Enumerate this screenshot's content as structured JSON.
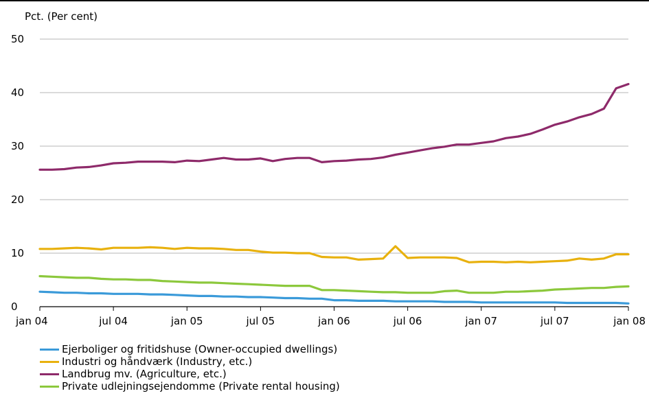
{
  "chart_data": {
    "type": "line",
    "title": "",
    "ylabel": "Pct. (Per cent)",
    "xlabel": "",
    "ylim": [
      0,
      50
    ],
    "yticks": [
      0,
      10,
      20,
      30,
      40,
      50
    ],
    "xtick_labels": [
      "jan 04",
      "jul 04",
      "jan 05",
      "jul 05",
      "jan 06",
      "jul 06",
      "jan 07",
      "jul 07",
      "jan 08"
    ],
    "x": [
      "2004-01",
      "2004-02",
      "2004-03",
      "2004-04",
      "2004-05",
      "2004-06",
      "2004-07",
      "2004-08",
      "2004-09",
      "2004-10",
      "2004-11",
      "2004-12",
      "2005-01",
      "2005-02",
      "2005-03",
      "2005-04",
      "2005-05",
      "2005-06",
      "2005-07",
      "2005-08",
      "2005-09",
      "2005-10",
      "2005-11",
      "2005-12",
      "2006-01",
      "2006-02",
      "2006-03",
      "2006-04",
      "2006-05",
      "2006-06",
      "2006-07",
      "2006-08",
      "2006-09",
      "2006-10",
      "2006-11",
      "2006-12",
      "2007-01",
      "2007-02",
      "2007-03",
      "2007-04",
      "2007-05",
      "2007-06",
      "2007-07",
      "2007-08",
      "2007-09",
      "2007-10",
      "2007-11",
      "2007-12",
      "2008-01"
    ],
    "grid": "horizontal",
    "legend_position": "bottom",
    "series": [
      {
        "name": "Ejerboliger og fritidshuse (Owner-occupied dwellings)",
        "color": "#3a9ad9",
        "values": [
          2.8,
          2.7,
          2.6,
          2.6,
          2.5,
          2.5,
          2.4,
          2.4,
          2.4,
          2.3,
          2.3,
          2.2,
          2.1,
          2.0,
          2.0,
          1.9,
          1.9,
          1.8,
          1.8,
          1.7,
          1.6,
          1.6,
          1.5,
          1.5,
          1.2,
          1.2,
          1.1,
          1.1,
          1.1,
          1.0,
          1.0,
          1.0,
          1.0,
          0.9,
          0.9,
          0.9,
          0.8,
          0.8,
          0.8,
          0.8,
          0.8,
          0.8,
          0.8,
          0.7,
          0.7,
          0.7,
          0.7,
          0.7,
          0.6
        ]
      },
      {
        "name": "Industri og håndværk (Industry, etc.)",
        "color": "#e8b10e",
        "values": [
          10.8,
          10.8,
          10.9,
          11.0,
          10.9,
          10.7,
          11.0,
          11.0,
          11.0,
          11.1,
          11.0,
          10.8,
          11.0,
          10.9,
          10.9,
          10.8,
          10.6,
          10.6,
          10.3,
          10.1,
          10.1,
          10.0,
          10.0,
          9.3,
          9.2,
          9.2,
          8.8,
          8.9,
          9.0,
          11.3,
          9.1,
          9.2,
          9.2,
          9.2,
          9.1,
          8.3,
          8.4,
          8.4,
          8.3,
          8.4,
          8.3,
          8.4,
          8.5,
          8.6,
          9.0,
          8.8,
          9.0,
          9.8,
          9.8
        ]
      },
      {
        "name": "Landbrug mv. (Agriculture, etc.)",
        "color": "#8e2a6a",
        "values": [
          25.6,
          25.6,
          25.7,
          26.0,
          26.1,
          26.4,
          26.8,
          26.9,
          27.1,
          27.1,
          27.1,
          27.0,
          27.3,
          27.2,
          27.5,
          27.8,
          27.5,
          27.5,
          27.7,
          27.2,
          27.6,
          27.8,
          27.8,
          27.0,
          27.2,
          27.3,
          27.5,
          27.6,
          27.9,
          28.4,
          28.8,
          29.2,
          29.6,
          29.9,
          30.3,
          30.3,
          30.6,
          30.9,
          31.5,
          31.8,
          32.3,
          33.1,
          34.0,
          34.6,
          35.4,
          36.0,
          37.0,
          40.8,
          41.6
        ]
      },
      {
        "name": "Private udlejningsejendomme (Private rental housing)",
        "color": "#8cc83c",
        "values": [
          5.7,
          5.6,
          5.5,
          5.4,
          5.4,
          5.2,
          5.1,
          5.1,
          5.0,
          5.0,
          4.8,
          4.7,
          4.6,
          4.5,
          4.5,
          4.4,
          4.3,
          4.2,
          4.1,
          4.0,
          3.9,
          3.9,
          3.9,
          3.1,
          3.1,
          3.0,
          2.9,
          2.8,
          2.7,
          2.7,
          2.6,
          2.6,
          2.6,
          2.9,
          3.0,
          2.6,
          2.6,
          2.6,
          2.8,
          2.8,
          2.9,
          3.0,
          3.2,
          3.3,
          3.4,
          3.5,
          3.5,
          3.7,
          3.8
        ]
      }
    ]
  }
}
